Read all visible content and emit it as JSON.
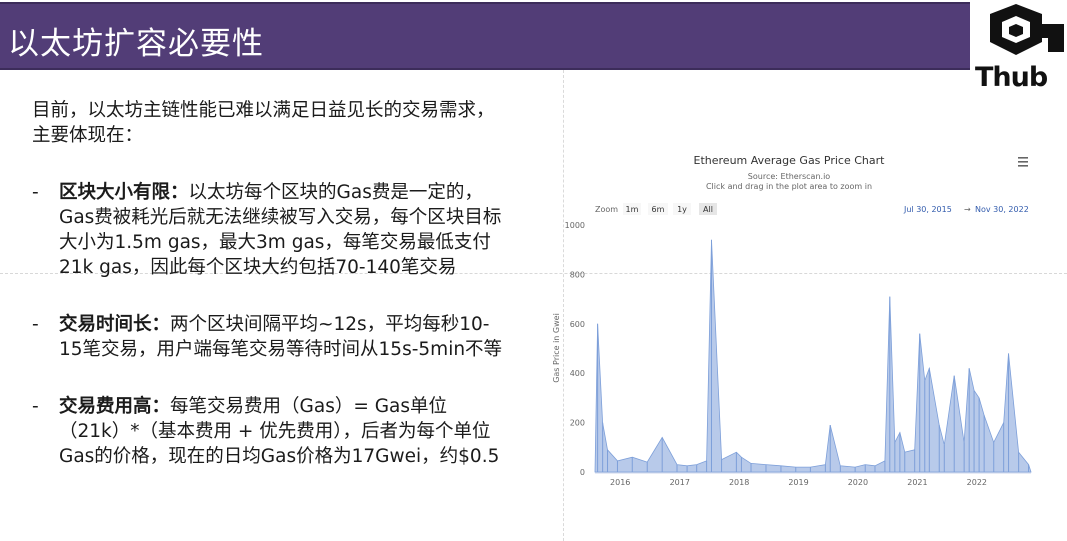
{
  "slide": {
    "title": "以太坊扩容必要性",
    "logo_text": "Thub"
  },
  "content": {
    "intro": "目前，以太坊主链性能已难以满足日益见长的交易需求，主要体现在：",
    "bullets": [
      {
        "dash": "-",
        "heading": "区块大小有限：",
        "body": "以太坊每个区块的Gas费是一定的，Gas费被耗光后就无法继续被写入交易，每个区块目标大小为1.5m gas，最大3m gas，每笔交易最低支付21k gas，因此每个区块大约包括70-140笔交易"
      },
      {
        "dash": "-",
        "heading": "交易时间长：",
        "body": "两个区块间隔平均~12s，平均每秒10-15笔交易，用户端每笔交易等待时间从15s-5min不等"
      },
      {
        "dash": "-",
        "heading": "交易费用高：",
        "body": "每笔交易费用（Gas）= Gas单位（21k）*（基本费用 + 优先费用），后者为每个单位Gas的价格，现在的日均Gas价格为17Gwei，约$0.5"
      }
    ]
  },
  "chart": {
    "menu_icon": "hamburger-menu-icon",
    "zoom_label": "Zoom",
    "zoom_buttons": [
      "1m",
      "6m",
      "1y",
      "All"
    ],
    "selected_zoom": "All",
    "date_from": "Jul 30, 2015",
    "date_arrow": "→",
    "date_to": "Nov 30, 2022",
    "title": "Ethereum Average Gas Price Chart",
    "source": "Source: Etherscan.io",
    "hint": "Click and drag in the plot area to zoom in",
    "colors": {
      "series": "#7d9fd9",
      "accent": "#335cad"
    }
  },
  "chart_data": {
    "type": "area",
    "title": "Ethereum Average Gas Price Chart",
    "subtitle": "Source: Etherscan.io",
    "xlabel": "",
    "ylabel": "Gas Price in Gwei",
    "ylim": [
      0,
      1000
    ],
    "yticks": [
      "0",
      "200",
      "400",
      "600",
      "800",
      "1000"
    ],
    "xticks": [
      "2016",
      "2017",
      "2018",
      "2019",
      "2020",
      "2021",
      "2022"
    ],
    "xrange": [
      "2015-07-30",
      "2022-11-30"
    ],
    "grid": false,
    "series": [
      {
        "name": "",
        "x": [
          "2015-08",
          "2015-09",
          "2015-10",
          "2015-12",
          "2016-03",
          "2016-06",
          "2016-09",
          "2016-12",
          "2017-02",
          "2017-04",
          "2017-06",
          "2017-07",
          "2017-09",
          "2017-12",
          "2018-01",
          "2018-03",
          "2018-06",
          "2018-09",
          "2018-12",
          "2019-03",
          "2019-06",
          "2019-07",
          "2019-09",
          "2019-12",
          "2020-02",
          "2020-04",
          "2020-06",
          "2020-07",
          "2020-08",
          "2020-09",
          "2020-10",
          "2020-12",
          "2021-01",
          "2021-02",
          "2021-03",
          "2021-05",
          "2021-06",
          "2021-08",
          "2021-10",
          "2021-11",
          "2021-12",
          "2022-01",
          "2022-02",
          "2022-04",
          "2022-06",
          "2022-07",
          "2022-09",
          "2022-11"
        ],
        "values": [
          600,
          200,
          90,
          45,
          60,
          40,
          140,
          30,
          25,
          30,
          45,
          940,
          50,
          80,
          60,
          35,
          30,
          25,
          20,
          20,
          30,
          190,
          25,
          20,
          30,
          25,
          45,
          710,
          120,
          160,
          80,
          90,
          560,
          370,
          420,
          190,
          110,
          390,
          120,
          420,
          330,
          300,
          230,
          120,
          200,
          480,
          80,
          30
        ]
      }
    ]
  }
}
